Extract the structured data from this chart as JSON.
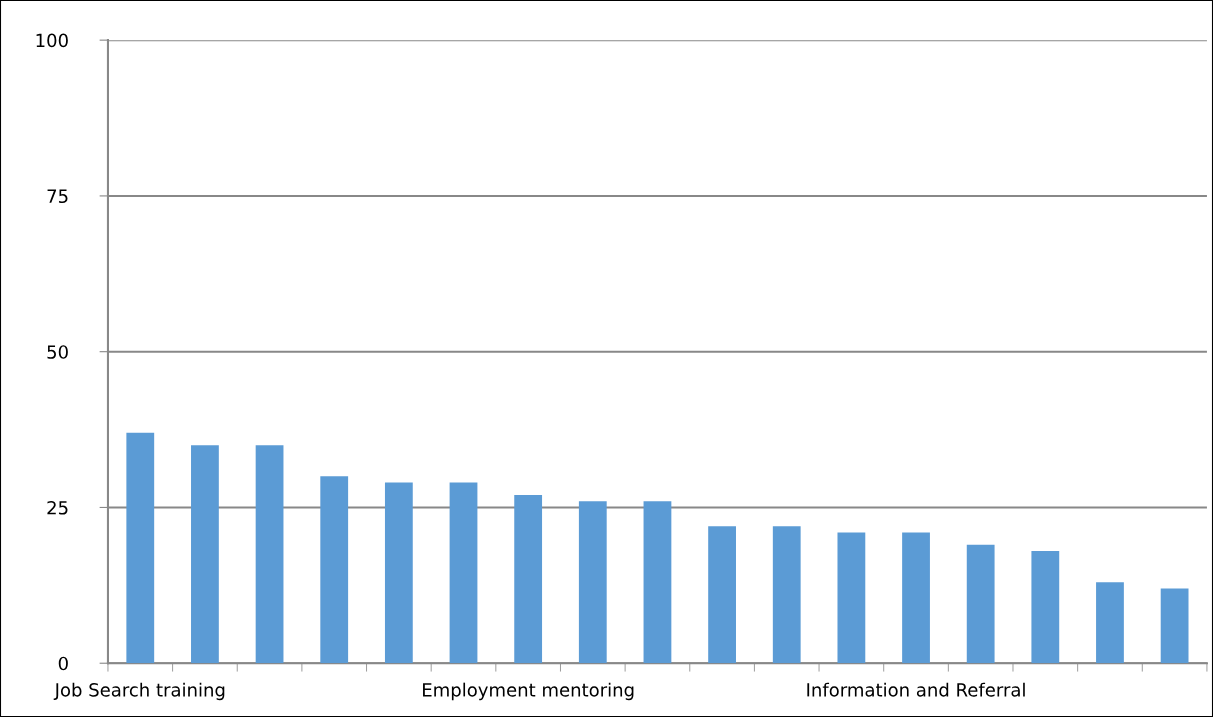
{
  "chart_data": {
    "type": "bar",
    "categories": [
      "Job Search training",
      null,
      null,
      null,
      null,
      null,
      "Employment mentoring",
      null,
      null,
      null,
      null,
      null,
      "Information and Referral",
      null,
      null,
      null,
      null
    ],
    "values": [
      37,
      35,
      35,
      30,
      29,
      29,
      27,
      26,
      26,
      22,
      22,
      21,
      21,
      19,
      18,
      13,
      12
    ],
    "color": "#5b9bd5",
    "ylim": [
      0,
      100
    ],
    "yticks": [
      0,
      25,
      50,
      75,
      100
    ],
    "grid": "y"
  }
}
